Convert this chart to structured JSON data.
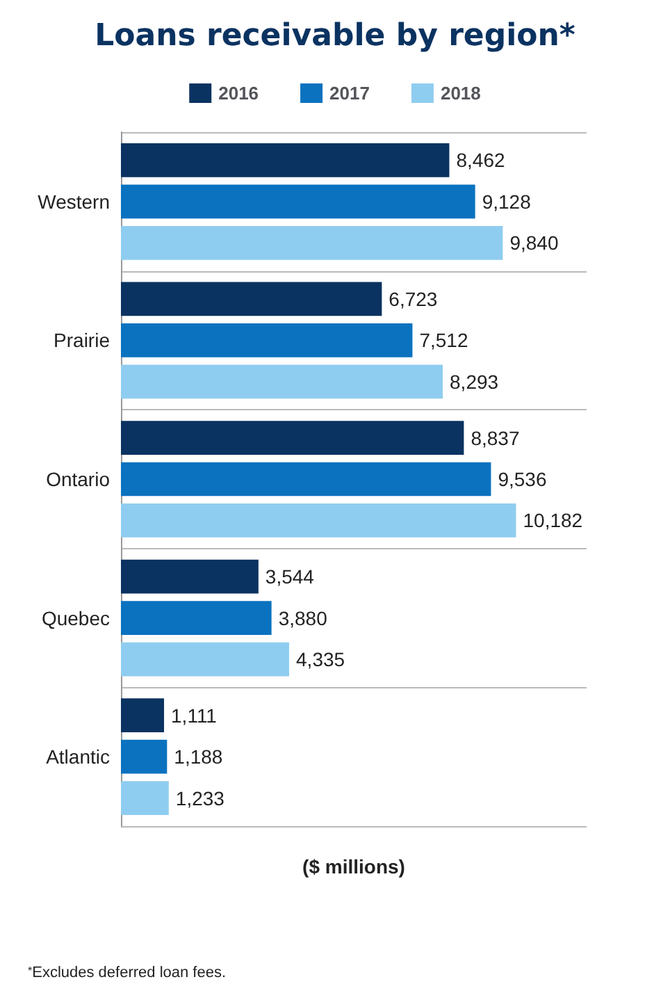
{
  "chart_data": {
    "type": "bar",
    "orientation": "horizontal",
    "title": "Loans receivable by region*",
    "xlabel": "($ millions)",
    "categories": [
      "Western",
      "Prairie",
      "Ontario",
      "Quebec",
      "Atlantic"
    ],
    "series": [
      {
        "name": "2016",
        "color": "#0b3361",
        "values": [
          8462,
          6723,
          8837,
          3544,
          1111
        ],
        "value_labels": [
          "8,462",
          "6,723",
          "8,837",
          "3,544",
          "1,111"
        ]
      },
      {
        "name": "2017",
        "color": "#0a72bf",
        "values": [
          9128,
          7512,
          9536,
          3880,
          1188
        ],
        "value_labels": [
          "9,128",
          "7,512",
          "9,536",
          "3,880",
          "1,188"
        ]
      },
      {
        "name": "2018",
        "color": "#8fcdf0",
        "values": [
          9840,
          8293,
          10182,
          4335,
          1233
        ],
        "value_labels": [
          "9,840",
          "8,293",
          "10,182",
          "4,335",
          "1,233"
        ]
      }
    ],
    "legend": "top",
    "grid": "y",
    "tick_labels": "y",
    "annotations": [
      "$^{*}$Excludes deferred loan fees."
    ]
  }
}
